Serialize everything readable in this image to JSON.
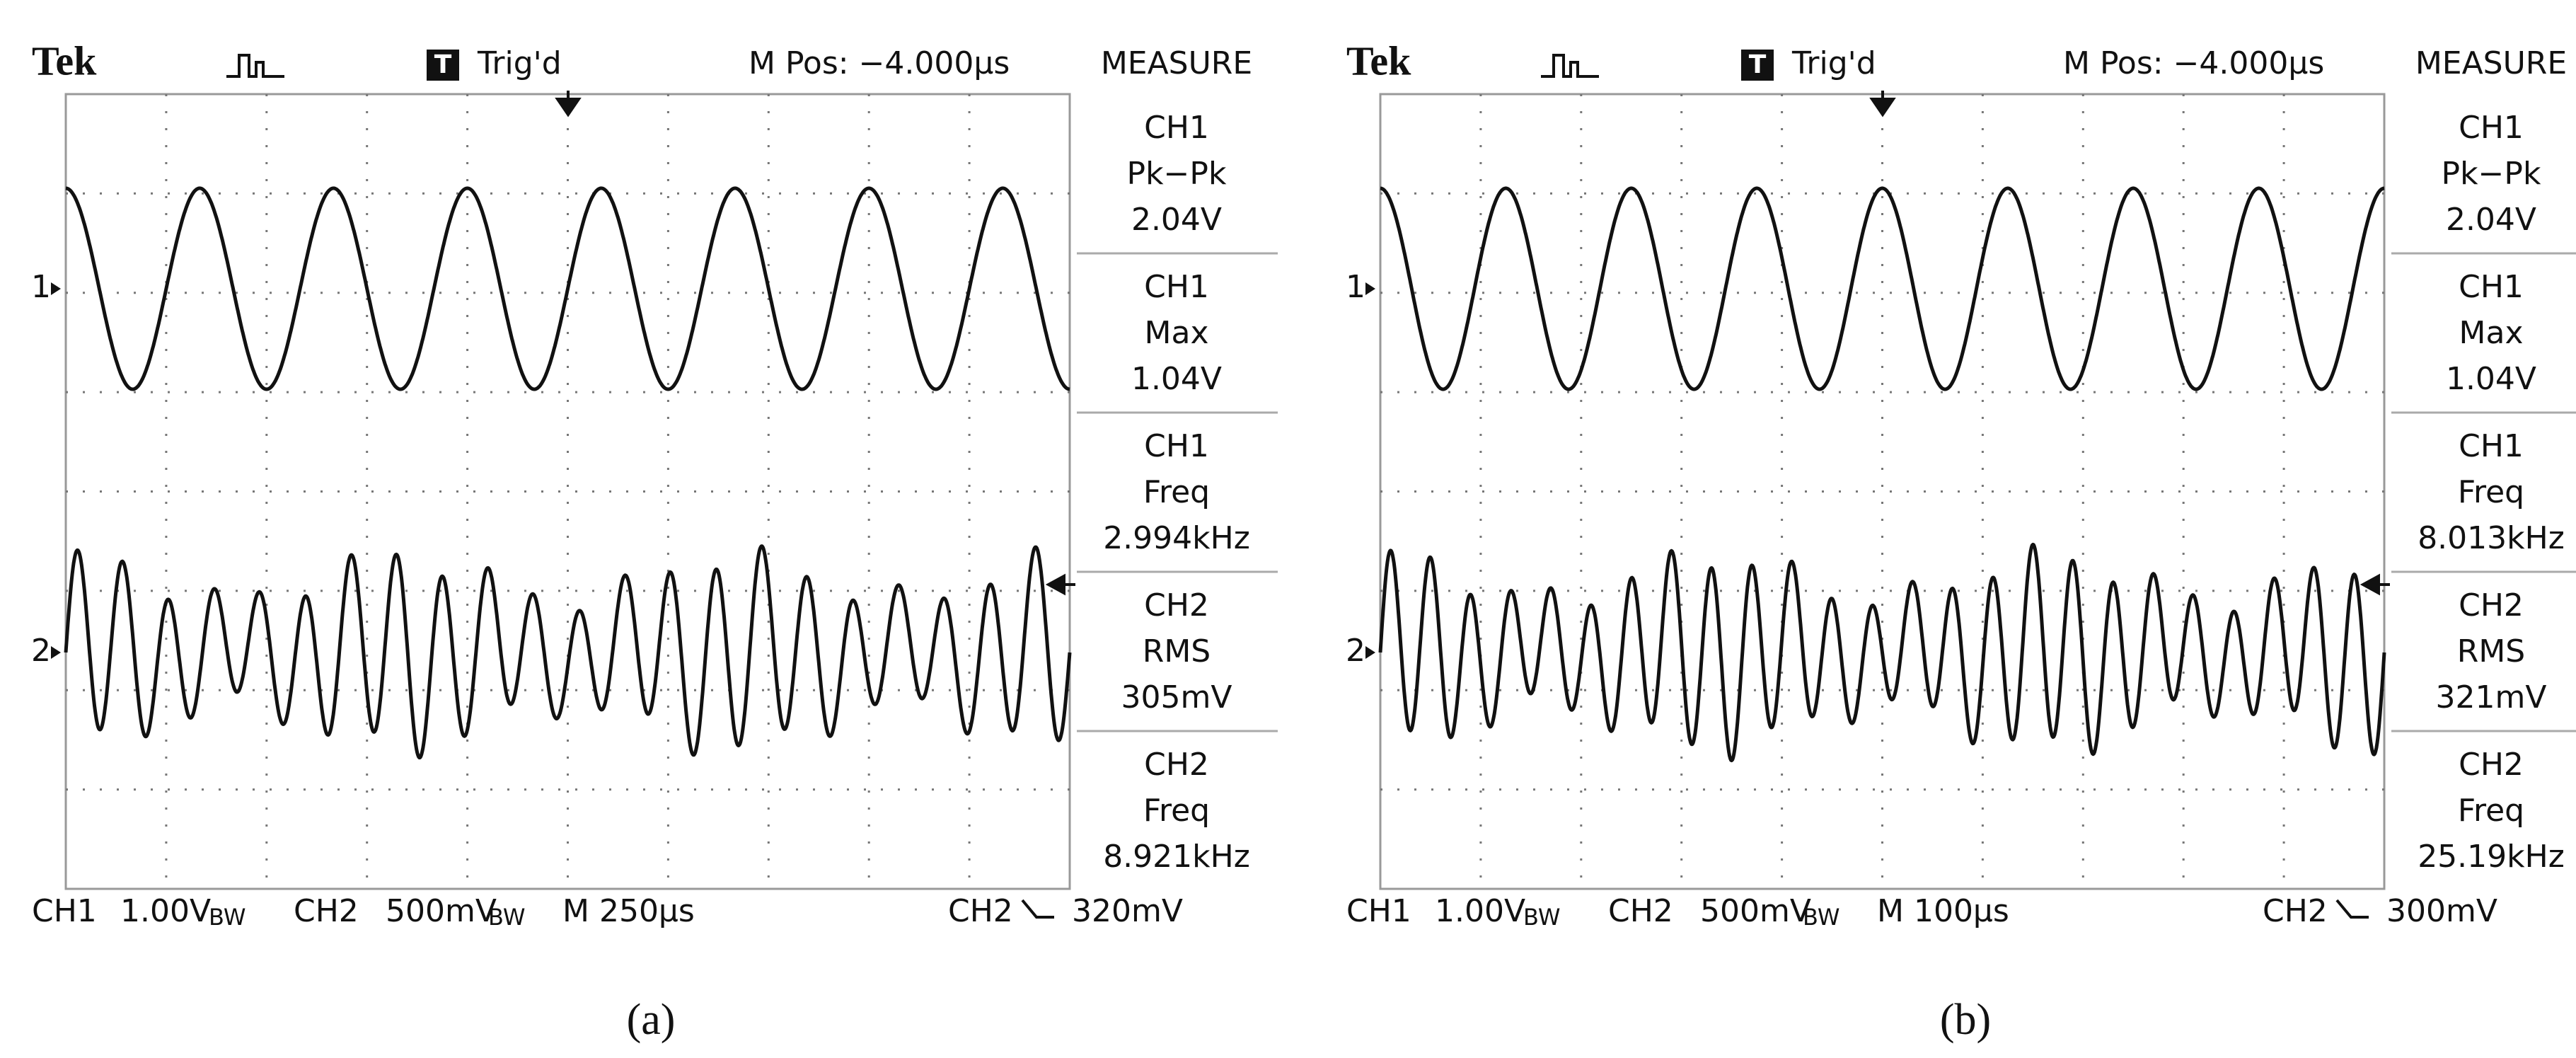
{
  "panels": [
    {
      "brand": "Tek",
      "trigger_icon": "T",
      "trigger_status": "Trig'd",
      "position": "M Pos: −4.000µs",
      "measure_title": "MEASURE",
      "channel_markers": [
        "1",
        "2"
      ],
      "measurements": [
        {
          "source": "CH1",
          "label": "Pk−Pk",
          "value": "2.04V"
        },
        {
          "source": "CH1",
          "label": "Max",
          "value": "1.04V"
        },
        {
          "source": "CH1",
          "label": "Freq",
          "value": "2.994kHz"
        },
        {
          "source": "CH2",
          "label": "RMS",
          "value": "305mV"
        },
        {
          "source": "CH2",
          "label": "Freq",
          "value": "8.921kHz"
        }
      ],
      "footer": {
        "ch1": "CH1",
        "ch1_scale": "1.00V",
        "ch1_bw": "BW",
        "ch2": "CH2",
        "ch2_scale": "500mV",
        "ch2_bw": "BW",
        "timebase": "M 250µs",
        "trigger_source": "CH2",
        "trigger_level": "320mV"
      },
      "caption": "(a)"
    },
    {
      "brand": "Tek",
      "trigger_icon": "T",
      "trigger_status": "Trig'd",
      "position": "M Pos: −4.000µs",
      "measure_title": "MEASURE",
      "channel_markers": [
        "1",
        "2"
      ],
      "measurements": [
        {
          "source": "CH1",
          "label": "Pk−Pk",
          "value": "2.04V"
        },
        {
          "source": "CH1",
          "label": "Max",
          "value": "1.04V"
        },
        {
          "source": "CH1",
          "label": "Freq",
          "value": "8.013kHz"
        },
        {
          "source": "CH2",
          "label": "RMS",
          "value": "321mV"
        },
        {
          "source": "CH2",
          "label": "Freq",
          "value": "25.19kHz"
        }
      ],
      "footer": {
        "ch1": "CH1",
        "ch1_scale": "1.00V",
        "ch1_bw": "BW",
        "ch2": "CH2",
        "ch2_scale": "500mV",
        "ch2_bw": "BW",
        "timebase": "M 100µs",
        "trigger_source": "CH2",
        "trigger_level": "300mV"
      },
      "caption": "(b)"
    }
  ]
}
